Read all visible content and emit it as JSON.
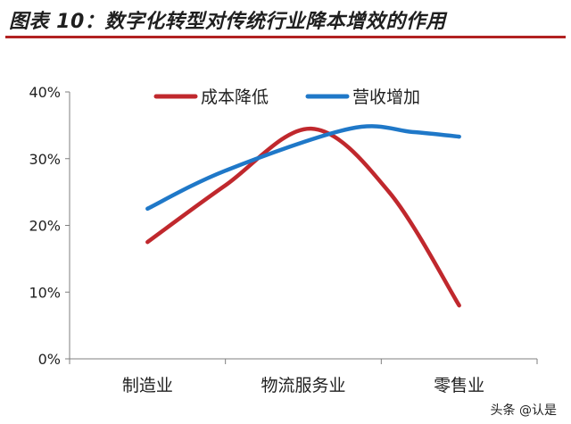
{
  "title": "图表 10：数字化转型对传统行业降本增效的作用",
  "watermark": "头条 @认是",
  "colors": {
    "title_rule": "#b22222"
  },
  "chart_data": {
    "type": "line",
    "categories": [
      "制造业",
      "物流服务业",
      "零售业"
    ],
    "y_tick_labels": [
      "0%",
      "10%",
      "20%",
      "30%",
      "40%"
    ],
    "ylim": [
      0,
      40
    ],
    "grid": false,
    "legend_position": "top",
    "series": [
      {
        "name": "成本降低",
        "color": "#c0282d",
        "values": [
          17.5,
          34.5,
          8
        ],
        "peak": {
          "x": 1.05,
          "y": 34.5
        }
      },
      {
        "name": "营收增加",
        "color": "#1f78c8",
        "values": [
          22.5,
          34.3,
          33.3
        ],
        "peak": {
          "x": 1.3,
          "y": 34.5
        }
      }
    ]
  }
}
